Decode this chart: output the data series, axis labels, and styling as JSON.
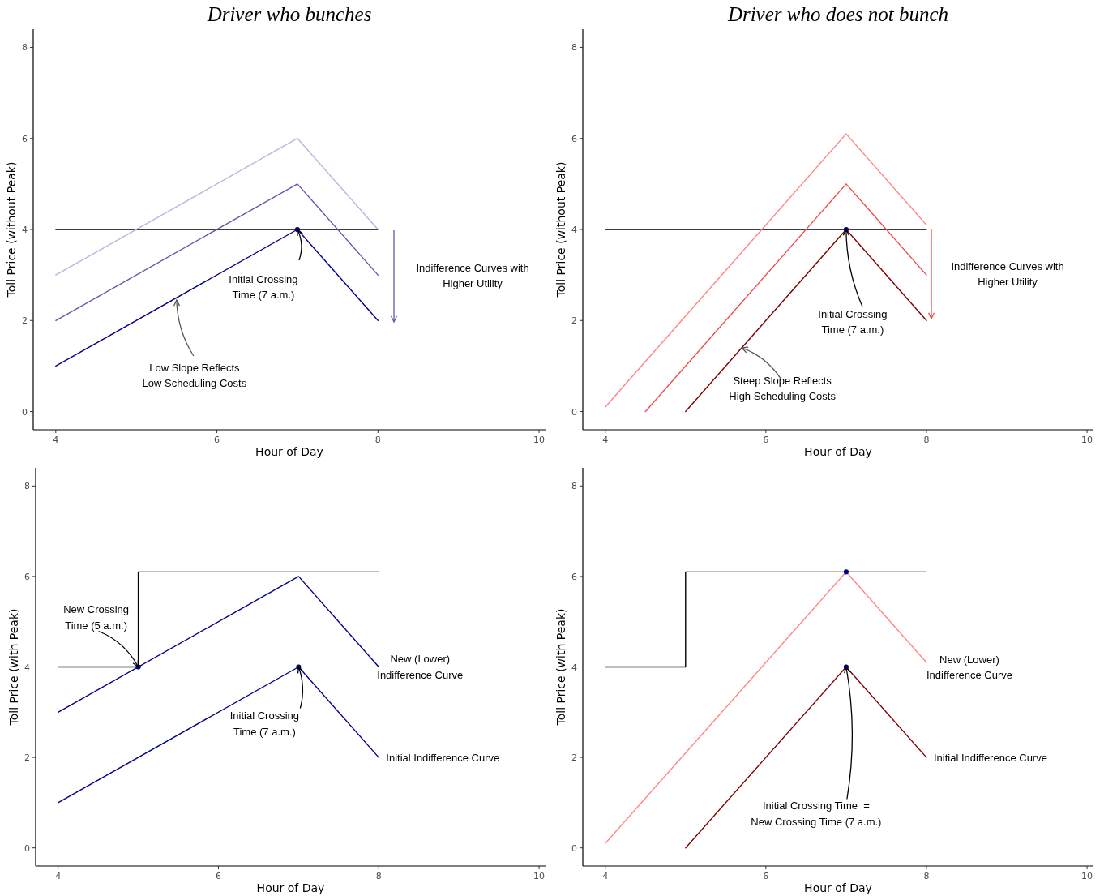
{
  "chart_data": [
    {
      "type": "line",
      "title": "Driver who bunches",
      "xlabel": "Hour of Day",
      "ylabel": "Toll Price (without Peak)",
      "xlim": [
        3.72,
        10.08
      ],
      "ylim": [
        -0.4,
        8.4
      ],
      "xticks": [
        4,
        6,
        8,
        10
      ],
      "yticks": [
        0,
        2,
        4,
        6,
        8
      ],
      "grid": false,
      "marker": "none",
      "series": [
        {
          "color": "#000000",
          "x": [
            4,
            8
          ],
          "values": [
            4,
            4
          ]
        },
        {
          "color": "#b8b6dd",
          "x": [
            4,
            7,
            8
          ],
          "values": [
            3,
            6,
            4
          ]
        },
        {
          "color": "#5b5bb0",
          "x": [
            4,
            7,
            8
          ],
          "values": [
            2,
            5,
            3
          ]
        },
        {
          "color": "#00008b",
          "x": [
            4,
            7,
            8
          ],
          "values": [
            1,
            4,
            2
          ]
        },
        {
          "type": "scatter",
          "marker": "circle",
          "color": "#000080",
          "x": [
            7
          ],
          "values": [
            4
          ]
        }
      ],
      "annotations": [
        {
          "text": "Initial Crossing\nTime (7 a.m.)",
          "x": 7,
          "y": 4
        },
        {
          "text": "Low Slope Reflects\nLow Scheduling Costs",
          "x": 5.5,
          "y": 2.45
        },
        "Indifference Curves with\nHigher Utility"
      ]
    },
    {
      "type": "line",
      "title": "Driver who does not bunch",
      "xlabel": "Hour of Day",
      "ylabel": "Toll Price (without Peak)",
      "xlim": [
        3.72,
        10.08
      ],
      "ylim": [
        -0.4,
        8.4
      ],
      "xticks": [
        4,
        6,
        8,
        10
      ],
      "yticks": [
        0,
        2,
        4,
        6,
        8
      ],
      "grid": false,
      "marker": "none",
      "series": [
        {
          "color": "#000000",
          "x": [
            4,
            8
          ],
          "values": [
            4,
            4
          ]
        },
        {
          "color": "#ff8585",
          "x": [
            4,
            7,
            8
          ],
          "values": [
            0.1,
            6.1,
            4.1
          ]
        },
        {
          "color": "#f04c4c",
          "x": [
            4.5,
            7,
            8
          ],
          "values": [
            0,
            5,
            3
          ]
        },
        {
          "color": "#7f0000",
          "x": [
            5,
            7,
            8
          ],
          "values": [
            0,
            4,
            2
          ]
        },
        {
          "type": "scatter",
          "marker": "circle",
          "color": "#000080",
          "x": [
            7
          ],
          "values": [
            4
          ]
        }
      ],
      "annotations": [
        {
          "text": "Initial Crossing\nTime (7 a.m.)",
          "x": 7,
          "y": 4
        },
        {
          "text": "Steep Slope Reflects\nHigh Scheduling Costs",
          "x": 5.7,
          "y": 1.4
        },
        "Indifference Curves with\nHigher Utility"
      ]
    },
    {
      "type": "line",
      "xlabel": "Hour of Day",
      "ylabel": "Toll Price (with Peak)",
      "xlim": [
        3.72,
        10.08
      ],
      "ylim": [
        -0.4,
        8.4
      ],
      "xticks": [
        4,
        6,
        8,
        10
      ],
      "yticks": [
        0,
        2,
        4,
        6,
        8
      ],
      "grid": false,
      "marker": "none",
      "series": [
        {
          "color": "#000000",
          "x": [
            4,
            5,
            5,
            8
          ],
          "values": [
            4,
            4,
            6.1,
            6.1
          ]
        },
        {
          "color": "#00008b",
          "x": [
            4,
            7,
            8
          ],
          "values": [
            3,
            6,
            4
          ]
        },
        {
          "color": "#00008b",
          "x": [
            4,
            7,
            8
          ],
          "values": [
            1,
            4,
            2
          ]
        },
        {
          "type": "scatter",
          "marker": "circle",
          "color": "#000080",
          "x": [
            5,
            7
          ],
          "values": [
            4,
            4
          ]
        }
      ],
      "annotations": [
        {
          "text": "New Crossing\nTime (5 a.m.)",
          "x": 5,
          "y": 4
        },
        {
          "text": "Initial Crossing\nTime (7 a.m.)",
          "x": 7,
          "y": 4
        },
        {
          "text": "New (Lower)\nIndifference Curve",
          "x": 8,
          "y": 4
        },
        {
          "text": "Initial Indifference Curve",
          "x": 8,
          "y": 2
        }
      ]
    },
    {
      "type": "line",
      "xlabel": "Hour of Day",
      "ylabel": "Toll Price (with Peak)",
      "xlim": [
        3.72,
        10.08
      ],
      "ylim": [
        -0.4,
        8.4
      ],
      "xticks": [
        4,
        6,
        8,
        10
      ],
      "yticks": [
        0,
        2,
        4,
        6,
        8
      ],
      "grid": false,
      "marker": "none",
      "series": [
        {
          "color": "#000000",
          "x": [
            4,
            5,
            5,
            8
          ],
          "values": [
            4,
            4,
            6.1,
            6.1
          ]
        },
        {
          "color": "#ff8585",
          "x": [
            4,
            7,
            8
          ],
          "values": [
            0.1,
            6.1,
            4.1
          ]
        },
        {
          "color": "#7f0000",
          "x": [
            5,
            7,
            8
          ],
          "values": [
            0,
            4,
            2
          ]
        },
        {
          "type": "scatter",
          "marker": "circle",
          "color": "#000080",
          "x": [
            7,
            7
          ],
          "values": [
            6.1,
            4
          ]
        }
      ],
      "annotations": [
        {
          "text": "Initial Crossing Time  =\nNew Crossing Time (7 a.m.)",
          "x": 7,
          "y": 4
        },
        {
          "text": "New (Lower)\nIndifference Curve",
          "x": 8,
          "y": 4.1
        },
        {
          "text": "Initial Indifference Curve",
          "x": 8,
          "y": 2
        }
      ]
    }
  ]
}
